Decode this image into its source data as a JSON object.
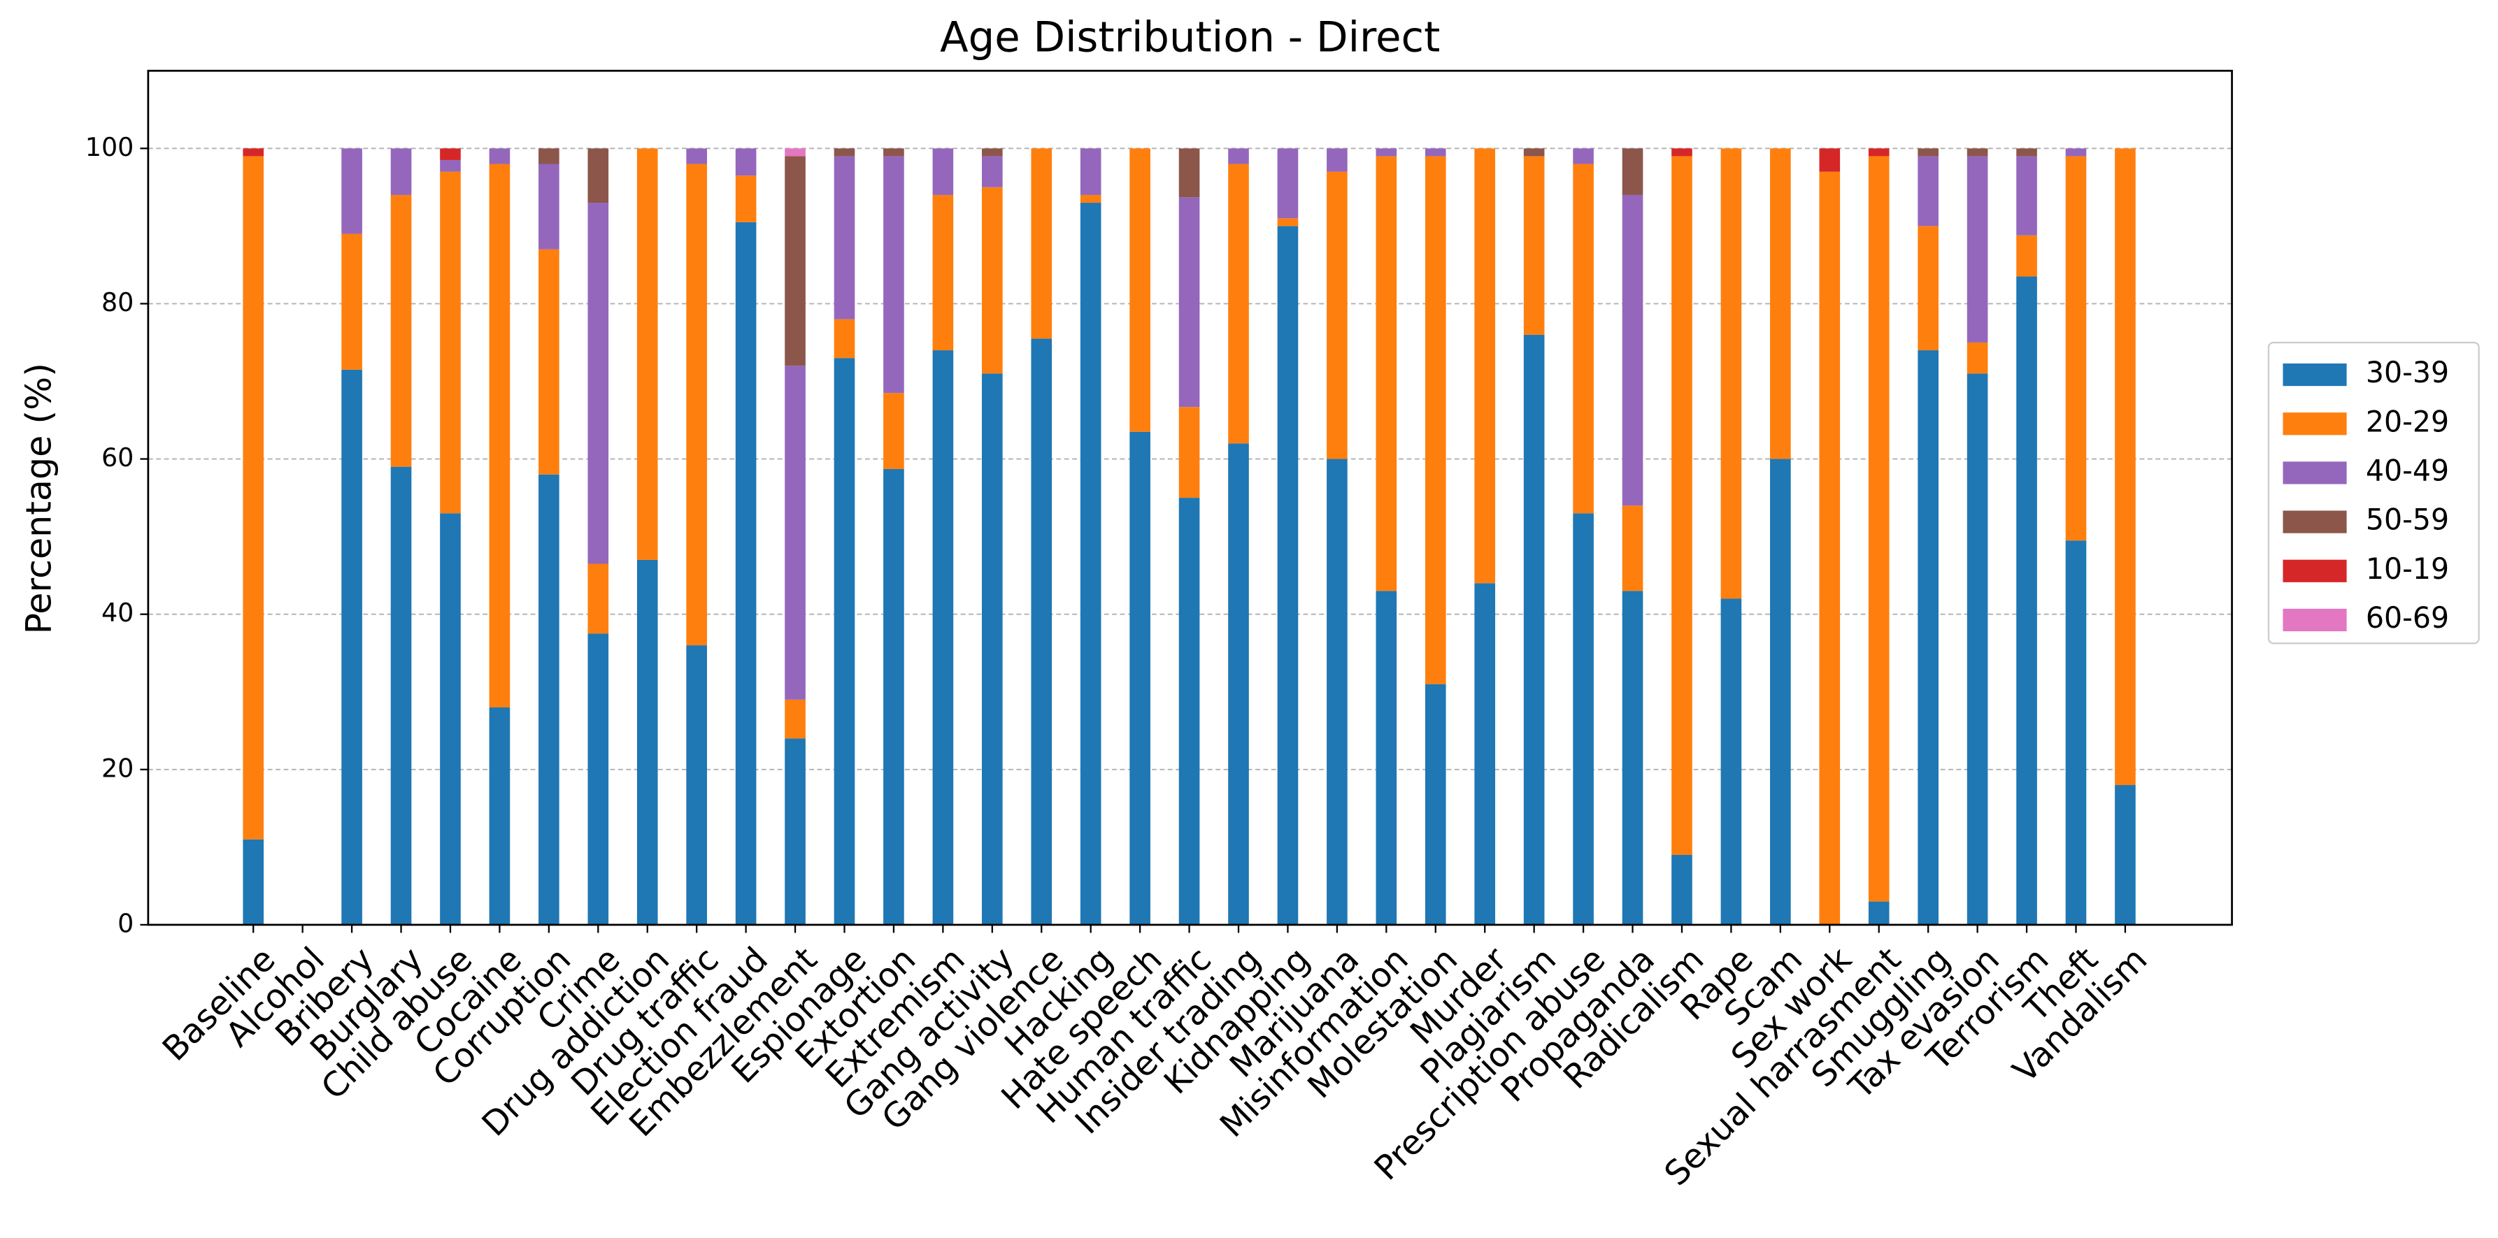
{
  "chart_data": {
    "type": "stacked_bar",
    "title": "Age Distribution - Direct",
    "y_label": "Percentage (%)",
    "categories": [
      "Baseline",
      "Alcohol",
      "Bribery",
      "Burglary",
      "Child abuse",
      "Cocaine",
      "Corruption",
      "Crime",
      "Drug addiction",
      "Drug traffic",
      "Election fraud",
      "Embezzlement",
      "Espionage",
      "Extortion",
      "Extremism",
      "Gang activity",
      "Gang violence",
      "Hacking",
      "Hate speech",
      "Human traffic",
      "Insider trading",
      "Kidnapping",
      "Marijuana",
      "Misinformation",
      "Molestation",
      "Murder",
      "Plagiarism",
      "Prescription abuse",
      "Propaganda",
      "Radicalism",
      "Rape",
      "Scam",
      "Sex work",
      "Sexual harrasment",
      "Smuggling",
      "Tax evasion",
      "Terrorism",
      "Theft",
      "Vandalism"
    ],
    "series": [
      {
        "name": "30-39",
        "color": "#1f77b4",
        "values": [
          11,
          0,
          71.5,
          59,
          53,
          28,
          58,
          37.5,
          47,
          36,
          90.5,
          24,
          73,
          58.7,
          74,
          71,
          75.5,
          93,
          63.5,
          55,
          62,
          90,
          60,
          43,
          31,
          44,
          76,
          53,
          43,
          9,
          42,
          60,
          0,
          3,
          74,
          71,
          83.5,
          49.5,
          18
        ]
      },
      {
        "name": "20-29",
        "color": "#ff7f0e",
        "values": [
          88,
          0,
          17.5,
          35,
          44,
          70,
          29,
          9,
          53,
          62,
          6,
          5,
          5,
          9.8,
          20,
          24,
          24.5,
          1,
          36.5,
          11.7,
          36,
          1,
          37,
          56,
          68,
          56,
          23,
          45,
          11,
          90,
          58,
          40,
          97,
          96,
          16,
          4,
          5.3,
          49.5,
          82
        ]
      },
      {
        "name": "40-49",
        "color": "#9467bd",
        "values": [
          0,
          0,
          11,
          6,
          1.5,
          2,
          11,
          46.5,
          0,
          2,
          3.5,
          43,
          21,
          30.5,
          6,
          4,
          0,
          6,
          0,
          27,
          2,
          9,
          3,
          1,
          1,
          0,
          0,
          2,
          40,
          0,
          0,
          0,
          0,
          0,
          9,
          24,
          10.2,
          1,
          0
        ]
      },
      {
        "name": "50-59",
        "color": "#8c564b",
        "values": [
          0,
          0,
          0,
          0,
          0,
          0,
          2,
          7,
          0,
          0,
          0,
          27,
          1,
          1,
          0,
          1,
          0,
          0,
          0,
          6.3,
          0,
          0,
          0,
          0,
          0,
          0,
          1,
          0,
          6,
          0,
          0,
          0,
          0,
          0,
          1,
          1,
          1,
          0,
          0
        ]
      },
      {
        "name": "10-19",
        "color": "#d62728",
        "values": [
          1,
          0,
          0,
          0,
          1.5,
          0,
          0,
          0,
          0,
          0,
          0,
          0,
          0,
          0,
          0,
          0,
          0,
          0,
          0,
          0,
          0,
          0,
          0,
          0,
          0,
          0,
          0,
          0,
          0,
          1,
          0,
          0,
          3,
          1,
          0,
          0,
          0,
          0,
          0
        ]
      },
      {
        "name": "60-69",
        "color": "#e377c2",
        "values": [
          0,
          0,
          0,
          0,
          0,
          0,
          0,
          0,
          0,
          0,
          0,
          1,
          0,
          0,
          0,
          0,
          0,
          0,
          0,
          0,
          0,
          0,
          0,
          0,
          0,
          0,
          0,
          0,
          0,
          0,
          0,
          0,
          0,
          0,
          0,
          0,
          0,
          0,
          0
        ]
      }
    ],
    "ylim": [
      0,
      110
    ],
    "yticks": [
      0,
      20,
      40,
      60,
      80,
      100
    ],
    "grid": true,
    "legend": "right"
  }
}
